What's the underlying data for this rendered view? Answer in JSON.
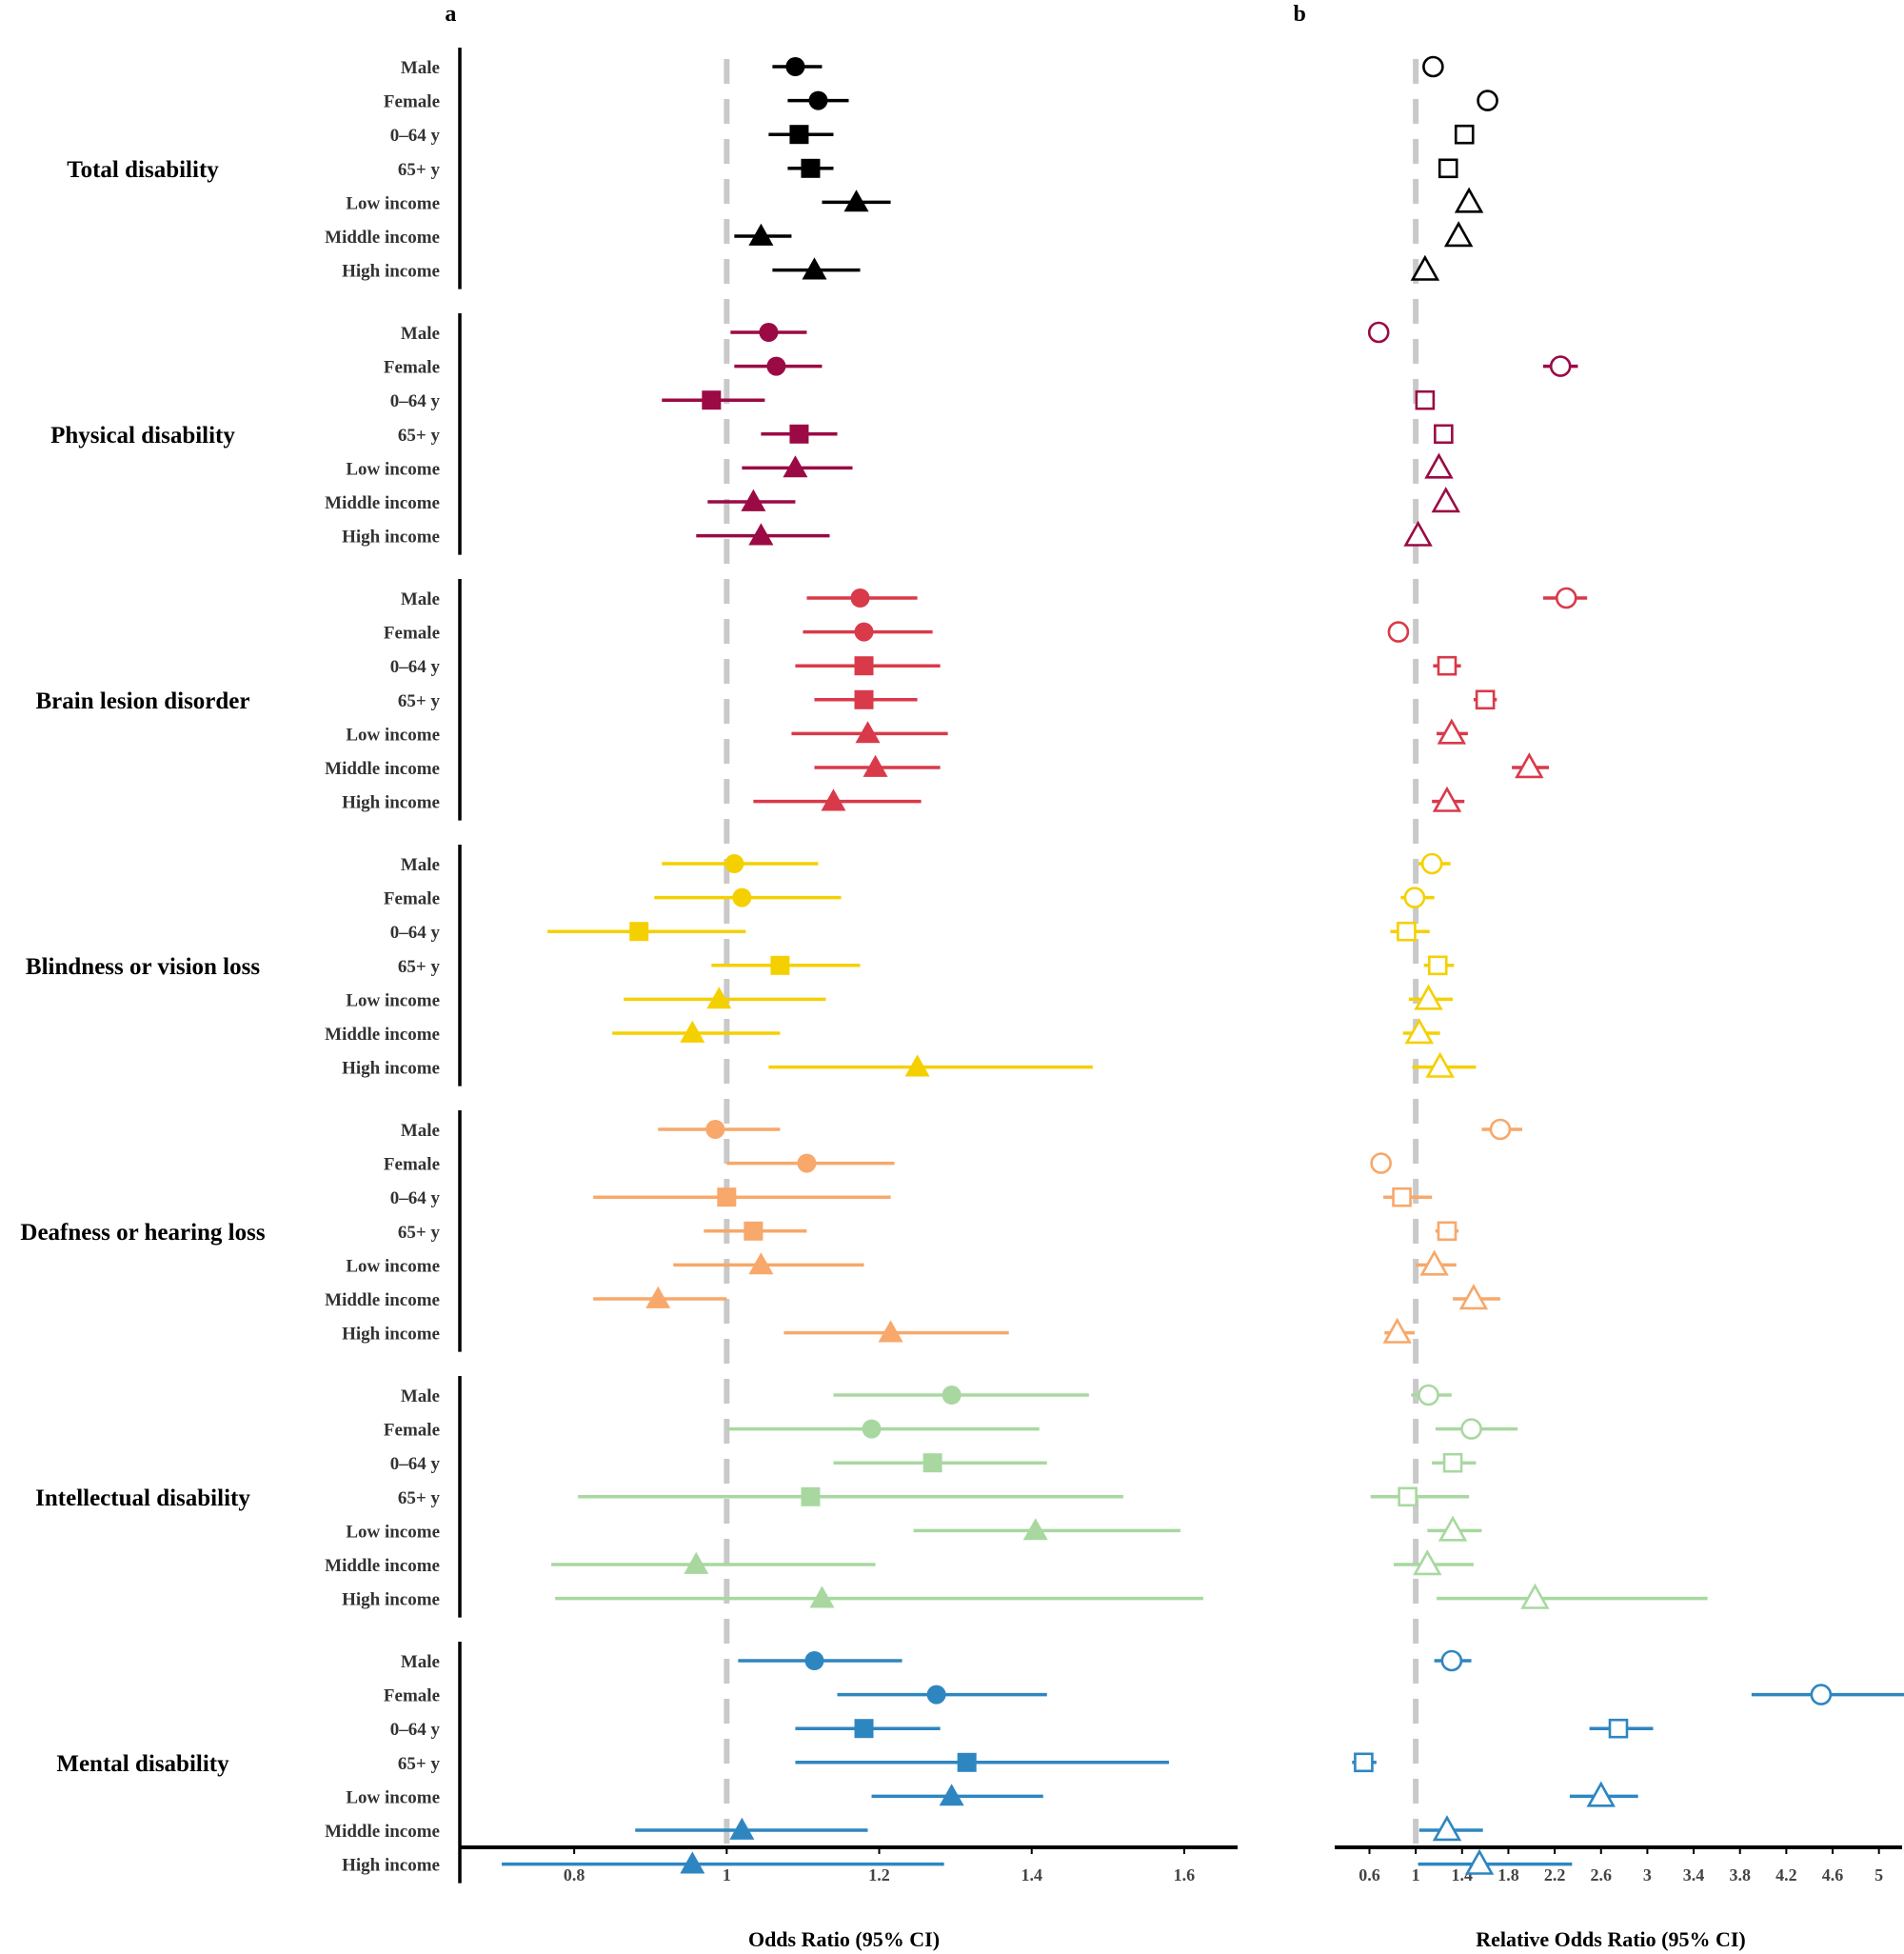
{
  "chart_data": [
    {
      "panel": "a",
      "type": "scatter",
      "subtype": "forest-plot",
      "xlabel": "Odds Ratio (95% CI)",
      "xlim": [
        0.65,
        1.67
      ],
      "xticks": [
        "0.8",
        "1",
        "1.2",
        "1.4",
        "1.6"
      ],
      "reference_line": 1,
      "marker_fill": "filled",
      "groups": [
        {
          "name": "Total disability",
          "color": "#000000",
          "rows": [
            {
              "label": "Male",
              "marker": "circle",
              "or": 1.09,
              "lo": 1.06,
              "hi": 1.125
            },
            {
              "label": "Female",
              "marker": "circle",
              "or": 1.12,
              "lo": 1.08,
              "hi": 1.16
            },
            {
              "label": "0–64 y",
              "marker": "square",
              "or": 1.095,
              "lo": 1.055,
              "hi": 1.14
            },
            {
              "label": "65+ y",
              "marker": "square",
              "or": 1.11,
              "lo": 1.08,
              "hi": 1.14
            },
            {
              "label": "Low income",
              "marker": "triangle",
              "or": 1.17,
              "lo": 1.125,
              "hi": 1.215
            },
            {
              "label": "Middle income",
              "marker": "triangle",
              "or": 1.045,
              "lo": 1.01,
              "hi": 1.085
            },
            {
              "label": "High income",
              "marker": "triangle",
              "or": 1.115,
              "lo": 1.06,
              "hi": 1.175
            }
          ]
        },
        {
          "name": "Physical disability",
          "color": "#9b0a45",
          "rows": [
            {
              "label": "Male",
              "marker": "circle",
              "or": 1.055,
              "lo": 1.005,
              "hi": 1.105
            },
            {
              "label": "Female",
              "marker": "circle",
              "or": 1.065,
              "lo": 1.01,
              "hi": 1.125
            },
            {
              "label": "0–64 y",
              "marker": "square",
              "or": 0.98,
              "lo": 0.915,
              "hi": 1.05
            },
            {
              "label": "65+ y",
              "marker": "square",
              "or": 1.095,
              "lo": 1.045,
              "hi": 1.145
            },
            {
              "label": "Low income",
              "marker": "triangle",
              "or": 1.09,
              "lo": 1.02,
              "hi": 1.165
            },
            {
              "label": "Middle income",
              "marker": "triangle",
              "or": 1.035,
              "lo": 0.975,
              "hi": 1.09
            },
            {
              "label": "High income",
              "marker": "triangle",
              "or": 1.045,
              "lo": 0.96,
              "hi": 1.135
            }
          ]
        },
        {
          "name": "Brain lesion disorder",
          "color": "#d93a4a",
          "rows": [
            {
              "label": "Male",
              "marker": "circle",
              "or": 1.175,
              "lo": 1.105,
              "hi": 1.25
            },
            {
              "label": "Female",
              "marker": "circle",
              "or": 1.18,
              "lo": 1.1,
              "hi": 1.27
            },
            {
              "label": "0–64 y",
              "marker": "square",
              "or": 1.18,
              "lo": 1.09,
              "hi": 1.28
            },
            {
              "label": "65+ y",
              "marker": "square",
              "or": 1.18,
              "lo": 1.115,
              "hi": 1.25
            },
            {
              "label": "Low income",
              "marker": "triangle",
              "or": 1.185,
              "lo": 1.085,
              "hi": 1.29
            },
            {
              "label": "Middle income",
              "marker": "triangle",
              "or": 1.195,
              "lo": 1.115,
              "hi": 1.28
            },
            {
              "label": "High income",
              "marker": "triangle",
              "or": 1.14,
              "lo": 1.035,
              "hi": 1.255
            }
          ]
        },
        {
          "name": "Blindness or vision loss",
          "color": "#f5d000",
          "rows": [
            {
              "label": "Male",
              "marker": "circle",
              "or": 1.01,
              "lo": 0.915,
              "hi": 1.12
            },
            {
              "label": "Female",
              "marker": "circle",
              "or": 1.02,
              "lo": 0.905,
              "hi": 1.15
            },
            {
              "label": "0–64 y",
              "marker": "square",
              "or": 0.885,
              "lo": 0.765,
              "hi": 1.025
            },
            {
              "label": "65+ y",
              "marker": "square",
              "or": 1.07,
              "lo": 0.98,
              "hi": 1.175
            },
            {
              "label": "Low income",
              "marker": "triangle",
              "or": 0.99,
              "lo": 0.865,
              "hi": 1.13
            },
            {
              "label": "Middle income",
              "marker": "triangle",
              "or": 0.955,
              "lo": 0.85,
              "hi": 1.07
            },
            {
              "label": "High income",
              "marker": "triangle",
              "or": 1.25,
              "lo": 1.055,
              "hi": 1.48
            }
          ]
        },
        {
          "name": "Deafness or hearing loss",
          "color": "#f7a86a",
          "rows": [
            {
              "label": "Male",
              "marker": "circle",
              "or": 0.985,
              "lo": 0.91,
              "hi": 1.07
            },
            {
              "label": "Female",
              "marker": "circle",
              "or": 1.105,
              "lo": 1.0,
              "hi": 1.22
            },
            {
              "label": "0–64 y",
              "marker": "square",
              "or": 1.0,
              "lo": 0.825,
              "hi": 1.215
            },
            {
              "label": "65+ y",
              "marker": "square",
              "or": 1.035,
              "lo": 0.97,
              "hi": 1.105
            },
            {
              "label": "Low income",
              "marker": "triangle",
              "or": 1.045,
              "lo": 0.93,
              "hi": 1.18
            },
            {
              "label": "Middle income",
              "marker": "triangle",
              "or": 0.91,
              "lo": 0.825,
              "hi": 1.0
            },
            {
              "label": "High income",
              "marker": "triangle",
              "or": 1.215,
              "lo": 1.075,
              "hi": 1.37
            }
          ]
        },
        {
          "name": "Intellectual disability",
          "color": "#a8d8a0",
          "rows": [
            {
              "label": "Male",
              "marker": "circle",
              "or": 1.295,
              "lo": 1.14,
              "hi": 1.475
            },
            {
              "label": "Female",
              "marker": "circle",
              "or": 1.19,
              "lo": 1.0,
              "hi": 1.41
            },
            {
              "label": "0–64 y",
              "marker": "square",
              "or": 1.27,
              "lo": 1.14,
              "hi": 1.42
            },
            {
              "label": "65+ y",
              "marker": "square",
              "or": 1.11,
              "lo": 0.805,
              "hi": 1.52
            },
            {
              "label": "Low income",
              "marker": "triangle",
              "or": 1.405,
              "lo": 1.245,
              "hi": 1.595
            },
            {
              "label": "Middle income",
              "marker": "triangle",
              "or": 0.96,
              "lo": 0.77,
              "hi": 1.195
            },
            {
              "label": "High income",
              "marker": "triangle",
              "or": 1.125,
              "lo": 0.775,
              "hi": 1.625
            }
          ]
        },
        {
          "name": "Mental disability",
          "color": "#2e86c1",
          "rows": [
            {
              "label": "Male",
              "marker": "circle",
              "or": 1.115,
              "lo": 1.015,
              "hi": 1.23
            },
            {
              "label": "Female",
              "marker": "circle",
              "or": 1.275,
              "lo": 1.145,
              "hi": 1.42
            },
            {
              "label": "0–64 y",
              "marker": "square",
              "or": 1.18,
              "lo": 1.09,
              "hi": 1.28
            },
            {
              "label": "65+ y",
              "marker": "square",
              "or": 1.315,
              "lo": 1.09,
              "hi": 1.58
            },
            {
              "label": "Low income",
              "marker": "triangle",
              "or": 1.295,
              "lo": 1.19,
              "hi": 1.415
            },
            {
              "label": "Middle income",
              "marker": "triangle",
              "or": 1.02,
              "lo": 0.88,
              "hi": 1.185
            },
            {
              "label": "High income",
              "marker": "triangle",
              "or": 0.955,
              "lo": 0.705,
              "hi": 1.285
            }
          ]
        }
      ]
    },
    {
      "panel": "b",
      "type": "scatter",
      "subtype": "forest-plot",
      "xlabel": "Relative Odds Ratio (95% CI)",
      "xlim": [
        0.3,
        5.2
      ],
      "xticks": [
        "0.6",
        "1",
        "1.4",
        "1.8",
        "2.2",
        "2.6",
        "3",
        "3.4",
        "3.8",
        "4.2",
        "4.6",
        "5"
      ],
      "reference_line": 1,
      "marker_fill": "open",
      "groups": [
        {
          "name": "Total disability",
          "color": "#000000",
          "rows": [
            {
              "label": "Male",
              "marker": "circle",
              "or": 1.15,
              "lo": null,
              "hi": null
            },
            {
              "label": "Female",
              "marker": "circle",
              "or": 1.62,
              "lo": null,
              "hi": null
            },
            {
              "label": "0–64 y",
              "marker": "square",
              "or": 1.42,
              "lo": null,
              "hi": null
            },
            {
              "label": "65+ y",
              "marker": "square",
              "or": 1.28,
              "lo": null,
              "hi": null
            },
            {
              "label": "Low income",
              "marker": "triangle",
              "or": 1.46,
              "lo": null,
              "hi": null
            },
            {
              "label": "Middle income",
              "marker": "triangle",
              "or": 1.37,
              "lo": null,
              "hi": null
            },
            {
              "label": "High income",
              "marker": "triangle",
              "or": 1.08,
              "lo": null,
              "hi": null
            }
          ]
        },
        {
          "name": "Physical disability",
          "color": "#9b0a45",
          "rows": [
            {
              "label": "Male",
              "marker": "circle",
              "or": 0.68,
              "lo": null,
              "hi": null
            },
            {
              "label": "Female",
              "marker": "circle",
              "or": 2.25,
              "lo": 2.1,
              "hi": 2.4
            },
            {
              "label": "0–64 y",
              "marker": "square",
              "or": 1.08,
              "lo": null,
              "hi": null
            },
            {
              "label": "65+ y",
              "marker": "square",
              "or": 1.24,
              "lo": null,
              "hi": null
            },
            {
              "label": "Low income",
              "marker": "triangle",
              "or": 1.2,
              "lo": null,
              "hi": null
            },
            {
              "label": "Middle income",
              "marker": "triangle",
              "or": 1.26,
              "lo": null,
              "hi": null
            },
            {
              "label": "High income",
              "marker": "triangle",
              "or": 1.02,
              "lo": null,
              "hi": null
            }
          ]
        },
        {
          "name": "Brain lesion disorder",
          "color": "#d93a4a",
          "rows": [
            {
              "label": "Male",
              "marker": "circle",
              "or": 2.3,
              "lo": 2.1,
              "hi": 2.48
            },
            {
              "label": "Female",
              "marker": "circle",
              "or": 0.85,
              "lo": null,
              "hi": null
            },
            {
              "label": "0–64 y",
              "marker": "square",
              "or": 1.27,
              "lo": 1.15,
              "hi": 1.39
            },
            {
              "label": "65+ y",
              "marker": "square",
              "or": 1.6,
              "lo": 1.5,
              "hi": 1.7
            },
            {
              "label": "Low income",
              "marker": "triangle",
              "or": 1.31,
              "lo": 1.18,
              "hi": 1.45
            },
            {
              "label": "Middle income",
              "marker": "triangle",
              "or": 1.98,
              "lo": 1.83,
              "hi": 2.15
            },
            {
              "label": "High income",
              "marker": "triangle",
              "or": 1.27,
              "lo": 1.14,
              "hi": 1.42
            }
          ]
        },
        {
          "name": "Blindness or vision loss",
          "color": "#f5d000",
          "rows": [
            {
              "label": "Male",
              "marker": "circle",
              "or": 1.14,
              "lo": 1.02,
              "hi": 1.3
            },
            {
              "label": "Female",
              "marker": "circle",
              "or": 0.99,
              "lo": 0.87,
              "hi": 1.16
            },
            {
              "label": "0–64 y",
              "marker": "square",
              "or": 0.92,
              "lo": 0.78,
              "hi": 1.12
            },
            {
              "label": "65+ y",
              "marker": "square",
              "or": 1.19,
              "lo": 1.07,
              "hi": 1.33
            },
            {
              "label": "Low income",
              "marker": "triangle",
              "or": 1.11,
              "lo": 0.94,
              "hi": 1.32
            },
            {
              "label": "Middle income",
              "marker": "triangle",
              "or": 1.03,
              "lo": 0.89,
              "hi": 1.21
            },
            {
              "label": "High income",
              "marker": "triangle",
              "or": 1.21,
              "lo": 0.97,
              "hi": 1.52
            }
          ]
        },
        {
          "name": "Deafness or hearing loss",
          "color": "#f7a86a",
          "rows": [
            {
              "label": "Male",
              "marker": "circle",
              "or": 1.73,
              "lo": 1.57,
              "hi": 1.92
            },
            {
              "label": "Female",
              "marker": "circle",
              "or": 0.7,
              "lo": null,
              "hi": null
            },
            {
              "label": "0–64 y",
              "marker": "square",
              "or": 0.88,
              "lo": 0.72,
              "hi": 1.14
            },
            {
              "label": "65+ y",
              "marker": "square",
              "or": 1.27,
              "lo": 1.17,
              "hi": 1.37
            },
            {
              "label": "Low income",
              "marker": "triangle",
              "or": 1.16,
              "lo": 1.0,
              "hi": 1.35
            },
            {
              "label": "Middle income",
              "marker": "triangle",
              "or": 1.5,
              "lo": 1.32,
              "hi": 1.73
            },
            {
              "label": "High income",
              "marker": "triangle",
              "or": 0.84,
              "lo": 0.73,
              "hi": 0.99
            }
          ]
        },
        {
          "name": "Intellectual disability",
          "color": "#a8d8a0",
          "rows": [
            {
              "label": "Male",
              "marker": "circle",
              "or": 1.11,
              "lo": 0.96,
              "hi": 1.31
            },
            {
              "label": "Female",
              "marker": "circle",
              "or": 1.48,
              "lo": 1.17,
              "hi": 1.88
            },
            {
              "label": "0–64 y",
              "marker": "square",
              "or": 1.32,
              "lo": 1.14,
              "hi": 1.52
            },
            {
              "label": "65+ y",
              "marker": "square",
              "or": 0.93,
              "lo": 0.61,
              "hi": 1.46
            },
            {
              "label": "Low income",
              "marker": "triangle",
              "or": 1.32,
              "lo": 1.1,
              "hi": 1.57
            },
            {
              "label": "Middle income",
              "marker": "triangle",
              "or": 1.1,
              "lo": 0.81,
              "hi": 1.5
            },
            {
              "label": "High income",
              "marker": "triangle",
              "or": 2.03,
              "lo": 1.18,
              "hi": 3.52
            }
          ]
        },
        {
          "name": "Mental disability",
          "color": "#2e86c1",
          "rows": [
            {
              "label": "Male",
              "marker": "circle",
              "or": 1.31,
              "lo": 1.16,
              "hi": 1.48
            },
            {
              "label": "Female",
              "marker": "circle",
              "or": 4.5,
              "lo": 3.9,
              "hi": 5.3
            },
            {
              "label": "0–64 y",
              "marker": "square",
              "or": 2.75,
              "lo": 2.5,
              "hi": 3.05
            },
            {
              "label": "65+ y",
              "marker": "square",
              "or": 0.55,
              "lo": 0.45,
              "hi": 0.66
            },
            {
              "label": "Low income",
              "marker": "triangle",
              "or": 2.6,
              "lo": 2.33,
              "hi": 2.92
            },
            {
              "label": "Middle income",
              "marker": "triangle",
              "or": 1.27,
              "lo": 1.03,
              "hi": 1.58
            },
            {
              "label": "High income",
              "marker": "triangle",
              "or": 1.55,
              "lo": 1.02,
              "hi": 2.35
            }
          ]
        }
      ]
    }
  ]
}
